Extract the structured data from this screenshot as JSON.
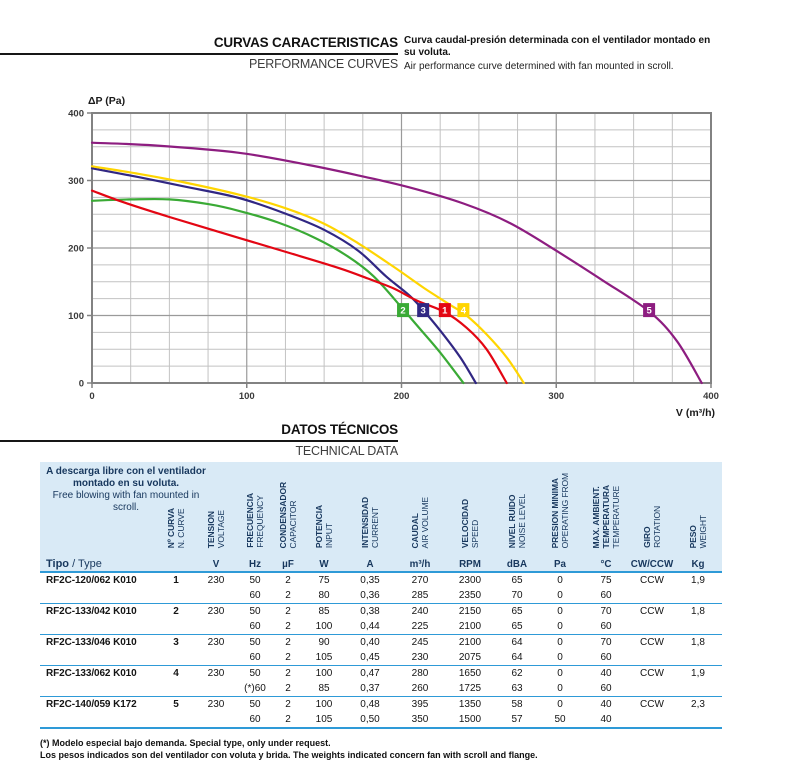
{
  "colors": {
    "table_header_bg": "#d9eaf6",
    "table_rule_blue": "#2e9ad7",
    "table_header_text": "#17375d",
    "section_rule_black": "#161616",
    "grid_major": "#9a9a9a",
    "grid_minor": "#c2c2c2",
    "axis_border": "#828282"
  },
  "header1": {
    "title_es": "CURVAS CARACTERISTICAS",
    "title_en": "PERFORMANCE CURVES",
    "desc_es": "Curva caudal-presión determinada con el ventilador montado en su voluta.",
    "desc_en": "Air performance curve determined with fan mounted in scroll."
  },
  "header2": {
    "title_es": "DATOS TÉCNICOS",
    "title_en": "TECHNICAL DATA"
  },
  "chart_data": {
    "type": "line",
    "xlabel": "V (m³/h)",
    "ylabel": "ΔP (Pa)",
    "xlim": [
      0,
      400
    ],
    "ylim": [
      0,
      400
    ],
    "x_ticks": [
      0,
      100,
      200,
      300,
      400
    ],
    "y_ticks": [
      0,
      100,
      200,
      300,
      400
    ],
    "minor_step_x": 25,
    "minor_step_y": 25,
    "grid": true,
    "legend_position": "badges-on-curves",
    "series": [
      {
        "name": "2",
        "color": "#3aaa35",
        "label_pos": {
          "x": 201,
          "y": 108
        },
        "points": [
          [
            0,
            270
          ],
          [
            25,
            272
          ],
          [
            50,
            272
          ],
          [
            75,
            265
          ],
          [
            95,
            255
          ],
          [
            120,
            238
          ],
          [
            145,
            214
          ],
          [
            165,
            188
          ],
          [
            182,
            158
          ],
          [
            200,
            112
          ],
          [
            212,
            80
          ],
          [
            225,
            45
          ],
          [
            240,
            0
          ]
        ]
      },
      {
        "name": "3",
        "color": "#312783",
        "label_pos": {
          "x": 214,
          "y": 108
        },
        "points": [
          [
            0,
            318
          ],
          [
            30,
            305
          ],
          [
            60,
            291
          ],
          [
            95,
            274
          ],
          [
            125,
            251
          ],
          [
            150,
            227
          ],
          [
            172,
            196
          ],
          [
            190,
            158
          ],
          [
            205,
            130
          ],
          [
            214,
            108
          ],
          [
            226,
            75
          ],
          [
            238,
            38
          ],
          [
            248,
            0
          ]
        ]
      },
      {
        "name": "4",
        "color": "#ffd500",
        "label_pos": {
          "x": 240,
          "y": 108
        },
        "points": [
          [
            0,
            321
          ],
          [
            30,
            310
          ],
          [
            60,
            297
          ],
          [
            95,
            279
          ],
          [
            125,
            259
          ],
          [
            150,
            236
          ],
          [
            172,
            207
          ],
          [
            195,
            172
          ],
          [
            215,
            140
          ],
          [
            232,
            115
          ],
          [
            242,
            100
          ],
          [
            255,
            72
          ],
          [
            268,
            38
          ],
          [
            279,
            0
          ]
        ]
      },
      {
        "name": "1",
        "color": "#e30613",
        "label_pos": {
          "x": 228,
          "y": 108
        },
        "points": [
          [
            0,
            285
          ],
          [
            20,
            268
          ],
          [
            50,
            246
          ],
          [
            95,
            215
          ],
          [
            130,
            191
          ],
          [
            160,
            170
          ],
          [
            178,
            155
          ],
          [
            195,
            140
          ],
          [
            210,
            122
          ],
          [
            228,
            105
          ],
          [
            242,
            82
          ],
          [
            255,
            50
          ],
          [
            268,
            0
          ]
        ]
      },
      {
        "name": "5",
        "color": "#8d1d80",
        "label_pos": {
          "x": 360,
          "y": 108
        },
        "points": [
          [
            0,
            356
          ],
          [
            40,
            352
          ],
          [
            95,
            341
          ],
          [
            140,
            323
          ],
          [
            175,
            306
          ],
          [
            205,
            290
          ],
          [
            240,
            266
          ],
          [
            270,
            237
          ],
          [
            300,
            196
          ],
          [
            330,
            152
          ],
          [
            360,
            106
          ],
          [
            378,
            62
          ],
          [
            394,
            0
          ]
        ]
      }
    ]
  },
  "table": {
    "note_es": "A descarga libre con el ventilador montado en su voluta.",
    "note_en": "Free blowing with fan mounted in scroll.",
    "type_header_es": "Tipo",
    "type_header_rest": " / Type",
    "columns": [
      {
        "es": [
          "Nº CURVA"
        ],
        "en": [
          "N. CURVE"
        ],
        "unit": ""
      },
      {
        "es": [
          "TENSION"
        ],
        "en": [
          "VOLTAGE"
        ],
        "unit": "V"
      },
      {
        "es": [
          "FRECUENCIA"
        ],
        "en": [
          "FREQUENCY"
        ],
        "unit": "Hz"
      },
      {
        "es": [
          "CONDENSADOR"
        ],
        "en": [
          "CAPACITOR"
        ],
        "unit": "µF"
      },
      {
        "es": [
          "POTENCIA"
        ],
        "en": [
          "INPUT"
        ],
        "unit": "W"
      },
      {
        "es": [
          "INTENSIDAD"
        ],
        "en": [
          "CURRENT"
        ],
        "unit": "A"
      },
      {
        "es": [
          "CAUDAL"
        ],
        "en": [
          "AIR VOLUME"
        ],
        "unit": "m³/h"
      },
      {
        "es": [
          "VELOCIDAD"
        ],
        "en": [
          "SPEED"
        ],
        "unit": "RPM"
      },
      {
        "es": [
          "NIVEL RUIDO"
        ],
        "en": [
          "NOISE LEVEL"
        ],
        "unit": "dBA"
      },
      {
        "es": [
          "PRESION MINIMA"
        ],
        "en": [
          "OPERATING FROM"
        ],
        "unit": "Pa"
      },
      {
        "es": [
          "MAX. AMBIENT.",
          "TEMPERATURA"
        ],
        "en": [
          "TEMPERATURE"
        ],
        "unit": "°C"
      },
      {
        "es": [
          "GIRO"
        ],
        "en": [
          "ROTATION"
        ],
        "unit": "CW/CCW"
      },
      {
        "es": [
          "PESO"
        ],
        "en": [
          "WEIGHT"
        ],
        "unit": "Kg"
      }
    ],
    "rows": [
      {
        "type": "RF2C-120/062 K010",
        "curve": "1",
        "voltage": "230",
        "rotation": "CCW",
        "weight": "1,9",
        "sub": [
          {
            "hz": "50",
            "uf": "2",
            "w": "75",
            "a": "0,35",
            "m3h": "270",
            "rpm": "2300",
            "dba": "65",
            "pa": "0",
            "temp": "75"
          },
          {
            "hz": "60",
            "uf": "2",
            "w": "80",
            "a": "0,36",
            "m3h": "285",
            "rpm": "2350",
            "dba": "70",
            "pa": "0",
            "temp": "60"
          }
        ]
      },
      {
        "type": "RF2C-133/042 K010",
        "curve": "2",
        "voltage": "230",
        "rotation": "CCW",
        "weight": "1,8",
        "sub": [
          {
            "hz": "50",
            "uf": "2",
            "w": "85",
            "a": "0,38",
            "m3h": "240",
            "rpm": "2150",
            "dba": "65",
            "pa": "0",
            "temp": "70"
          },
          {
            "hz": "60",
            "uf": "2",
            "w": "100",
            "a": "0,44",
            "m3h": "225",
            "rpm": "2100",
            "dba": "65",
            "pa": "0",
            "temp": "60"
          }
        ]
      },
      {
        "type": "RF2C-133/046 K010",
        "curve": "3",
        "voltage": "230",
        "rotation": "CCW",
        "weight": "1,8",
        "sub": [
          {
            "hz": "50",
            "uf": "2",
            "w": "90",
            "a": "0,40",
            "m3h": "245",
            "rpm": "2100",
            "dba": "64",
            "pa": "0",
            "temp": "70"
          },
          {
            "hz": "60",
            "uf": "2",
            "w": "105",
            "a": "0,45",
            "m3h": "230",
            "rpm": "2075",
            "dba": "64",
            "pa": "0",
            "temp": "60"
          }
        ]
      },
      {
        "type": "RF2C-133/062 K010",
        "curve": "4",
        "voltage": "230",
        "rotation": "CCW",
        "weight": "1,9",
        "sub": [
          {
            "hz": "50",
            "uf": "2",
            "w": "100",
            "a": "0,47",
            "m3h": "280",
            "rpm": "1650",
            "dba": "62",
            "pa": "0",
            "temp": "40"
          },
          {
            "hz": "(*)60",
            "uf": "2",
            "w": "85",
            "a": "0,37",
            "m3h": "260",
            "rpm": "1725",
            "dba": "63",
            "pa": "0",
            "temp": "60"
          }
        ]
      },
      {
        "type": "RF2C-140/059 K172",
        "curve": "5",
        "voltage": "230",
        "rotation": "CCW",
        "weight": "2,3",
        "sub": [
          {
            "hz": "50",
            "uf": "2",
            "w": "100",
            "a": "0,48",
            "m3h": "395",
            "rpm": "1350",
            "dba": "58",
            "pa": "0",
            "temp": "40"
          },
          {
            "hz": "60",
            "uf": "2",
            "w": "105",
            "a": "0,50",
            "m3h": "350",
            "rpm": "1500",
            "dba": "57",
            "pa": "50",
            "temp": "40"
          }
        ]
      }
    ],
    "footnotes": [
      "(*) Modelo especial bajo demanda. Special type, only under request.",
      "Los pesos indicados son del ventilador con voluta y brida. The weights indicated concern fan with scroll and flange."
    ]
  }
}
